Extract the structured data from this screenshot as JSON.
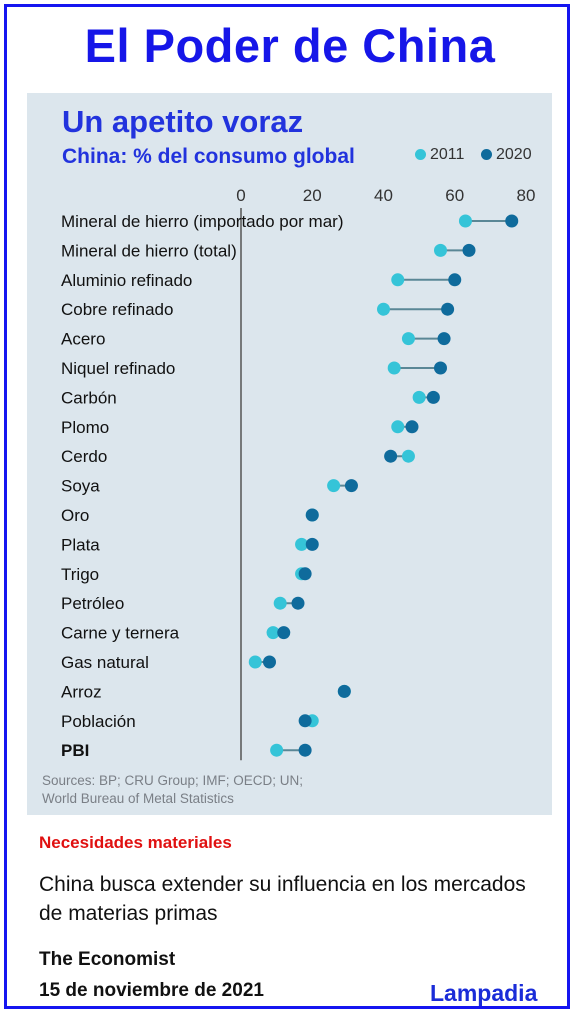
{
  "header": {
    "title": "El Poder de China"
  },
  "chart_data": {
    "type": "dumbbell",
    "title": "Un apetito voraz",
    "subtitle": "China: % del consumo global",
    "xlim": [
      0,
      80
    ],
    "xticks": [
      "0",
      "20",
      "40",
      "60",
      "80"
    ],
    "grid": true,
    "legend_position": "top-right",
    "series": [
      {
        "name": "2011",
        "color": "#35c4d8"
      },
      {
        "name": "2020",
        "color": "#0f6b9c"
      }
    ],
    "categories": [
      "Mineral de hierro (importado por mar)",
      "Mineral de hierro (total)",
      "Aluminio refinado",
      "Cobre refinado",
      "Acero",
      "Niquel refinado",
      "Carbón",
      "Plomo",
      "Cerdo",
      "Soya",
      "Oro",
      "Plata",
      "Trigo",
      "Petróleo",
      "Carne y ternera",
      "Gas natural",
      "Arroz",
      "Población",
      "PBI"
    ],
    "bold_categories": [
      "PBI"
    ],
    "values_2011": [
      63,
      56,
      44,
      40,
      47,
      43,
      50,
      44,
      47,
      26,
      20,
      17,
      17,
      11,
      9,
      4,
      29,
      20,
      10
    ],
    "values_2020": [
      76,
      64,
      60,
      58,
      57,
      56,
      54,
      48,
      42,
      31,
      20,
      20,
      18,
      16,
      12,
      8,
      29,
      18,
      18
    ]
  },
  "sources": {
    "line1": "Sources: BP; CRU Group; IMF; OECD; UN;",
    "line2": "World Bureau of Metal Statistics"
  },
  "caption": {
    "kicker": "Necesidades materiales",
    "description": "China busca extender su influencia en los mercados de materias primas",
    "publication": "The Economist",
    "date": "15 de noviembre de 2021",
    "brand": "Lampadia"
  }
}
